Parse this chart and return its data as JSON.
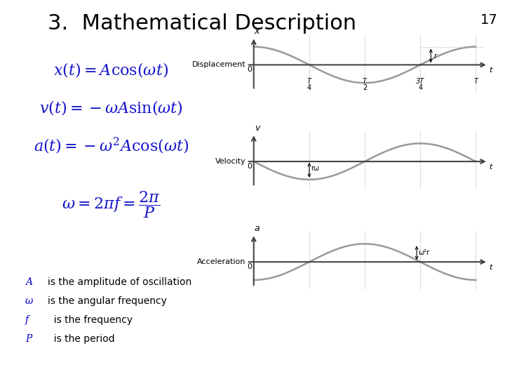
{
  "title": "3.  Mathematical Description",
  "title_fontsize": 22,
  "title_color": "#000000",
  "slide_number": "17",
  "background_color": "#ffffff",
  "equation_color": "#1515cc",
  "text_color": "#000000",
  "blue_color": "#0000cc",
  "equations": [
    "$x(t) = A\\cos(\\omega t)$",
    "$v(t) = -\\omega A\\sin(\\omega t)$",
    "$a(t) = -\\omega^2 A\\cos(\\omega t)$",
    "$\\omega = 2\\pi f = \\dfrac{2\\pi}{P}$"
  ],
  "bullets": [
    [
      "A",
      "is the amplitude of oscillation"
    ],
    [
      "ω",
      "is the angular frequency"
    ],
    [
      "f",
      "  is the frequency"
    ],
    [
      "P",
      "  is the period"
    ]
  ],
  "graph_labels": [
    "Displacement",
    "Velocity",
    "Acceleration"
  ],
  "graph_y_labels": [
    "x",
    "v",
    "a"
  ],
  "curve_color": "#999999",
  "axis_color": "#444444"
}
